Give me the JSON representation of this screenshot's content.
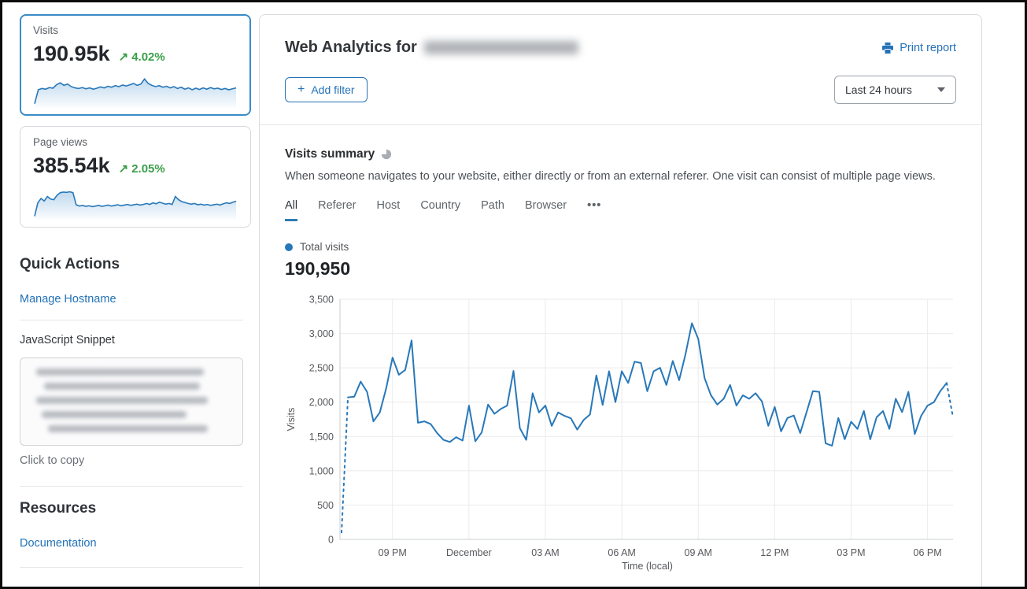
{
  "colors": {
    "accent_blue": "#2472b8",
    "chart_line": "#2878b9",
    "selected_card_border": "#3b8bc8",
    "positive_green": "#3a9e4a",
    "grid": "#ebebeb",
    "axis": "#c9ccd0",
    "tick_text": "#55585c"
  },
  "icons": {
    "trend": "arrow-up-right",
    "print": "printer",
    "add": "plus",
    "dropdown": "caret-down",
    "summary_help": "pie-chart",
    "more_tabs": "ellipsis"
  },
  "sidebar": {
    "visits_card": {
      "label": "Visits",
      "value": "190.95k",
      "trend_arrow": "↗",
      "delta": "4.02%"
    },
    "pageviews_card": {
      "label": "Page views",
      "value": "385.54k",
      "trend_arrow": "↗",
      "delta": "2.05%"
    },
    "quick_actions": {
      "title": "Quick Actions",
      "manage_hostname": "Manage Hostname",
      "snippet_label": "JavaScript Snippet",
      "click_to_copy": "Click to copy"
    },
    "resources": {
      "title": "Resources",
      "documentation": "Documentation"
    }
  },
  "header": {
    "title_prefix": "Web Analytics for",
    "print_report": "Print report",
    "add_filter": {
      "icon": "+",
      "label": "Add filter"
    },
    "time_range": "Last 24 hours"
  },
  "summary": {
    "title": "Visits summary",
    "description": "When someone navigates to your website, either directly or from an external referer. One visit can consist of multiple page views.",
    "tabs": [
      "All",
      "Referer",
      "Host",
      "Country",
      "Path",
      "Browser"
    ],
    "active_tab": "All",
    "more_tab": "•••",
    "legend_label": "Total visits",
    "total_value": "190,950"
  },
  "chart_data": {
    "main": {
      "type": "line",
      "series_name": "Total visits",
      "total": 190950,
      "xlabel": "Time (local)",
      "ylabel": "Visits",
      "ylim": [
        0,
        3500
      ],
      "yticks": [
        0,
        500,
        1000,
        1500,
        2000,
        2500,
        3000,
        3500
      ],
      "x_tick_labels": [
        "09 PM",
        "December",
        "03 AM",
        "06 AM",
        "09 AM",
        "12 PM",
        "03 PM",
        "06 PM"
      ],
      "x_tick_indices": [
        8,
        20,
        32,
        44,
        56,
        68,
        80,
        92
      ],
      "interval_minutes": 15,
      "grid": true,
      "dashed_head_segments": 1,
      "dashed_tail_segments": 1,
      "values": [
        100,
        2070,
        2080,
        2300,
        2150,
        1720,
        1850,
        2200,
        2650,
        2400,
        2470,
        2900,
        1700,
        1720,
        1680,
        1550,
        1450,
        1420,
        1490,
        1440,
        1950,
        1430,
        1560,
        1965,
        1830,
        1900,
        1950,
        2455,
        1620,
        1450,
        2130,
        1850,
        1950,
        1655,
        1850,
        1800,
        1765,
        1600,
        1740,
        1820,
        2390,
        1960,
        2450,
        2000,
        2450,
        2280,
        2590,
        2570,
        2160,
        2450,
        2500,
        2250,
        2600,
        2320,
        2700,
        3150,
        2920,
        2350,
        2100,
        1965,
        2050,
        2250,
        1950,
        2100,
        2050,
        2130,
        2010,
        1655,
        1930,
        1575,
        1770,
        1805,
        1550,
        1850,
        2160,
        2150,
        1400,
        1365,
        1770,
        1460,
        1715,
        1610,
        1870,
        1460,
        1780,
        1870,
        1610,
        2050,
        1855,
        2150,
        1535,
        1800,
        1950,
        2000,
        2160,
        2280,
        1780
      ]
    },
    "sparklines": {
      "visits": {
        "type": "area",
        "scale": "relative-0-100",
        "values": [
          6,
          50,
          54,
          52,
          57,
          55,
          66,
          72,
          64,
          68,
          60,
          56,
          54,
          57,
          53,
          56,
          52,
          55,
          59,
          56,
          61,
          58,
          63,
          60,
          65,
          62,
          66,
          70,
          64,
          68,
          84,
          70,
          64,
          60,
          63,
          58,
          61,
          56,
          60,
          54,
          58,
          52,
          56,
          50,
          55,
          51,
          56,
          52,
          57,
          53,
          55,
          51,
          54,
          50,
          53,
          56
        ]
      },
      "pageviews": {
        "type": "area",
        "scale": "relative-0-100",
        "values": [
          4,
          46,
          60,
          52,
          66,
          58,
          56,
          70,
          78,
          80,
          79,
          81,
          78,
          40,
          36,
          38,
          35,
          37,
          34,
          36,
          38,
          35,
          37,
          39,
          36,
          38,
          40,
          37,
          39,
          41,
          38,
          40,
          42,
          39,
          41,
          44,
          41,
          46,
          43,
          48,
          45,
          42,
          44,
          41,
          66,
          56,
          50,
          47,
          44,
          42,
          44,
          40,
          42,
          39,
          41,
          38,
          40,
          42,
          39,
          43,
          46,
          44,
          48,
          51
        ]
      }
    }
  }
}
